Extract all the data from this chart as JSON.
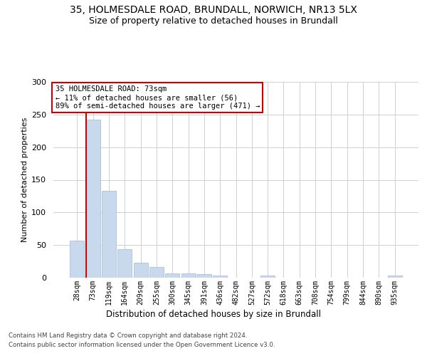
{
  "title_line1": "35, HOLMESDALE ROAD, BRUNDALL, NORWICH, NR13 5LX",
  "title_line2": "Size of property relative to detached houses in Brundall",
  "xlabel": "Distribution of detached houses by size in Brundall",
  "ylabel": "Number of detached properties",
  "annotation_line1": "35 HOLMESDALE ROAD: 73sqm",
  "annotation_line2": "← 11% of detached houses are smaller (56)",
  "annotation_line3": "89% of semi-detached houses are larger (471) →",
  "property_sqm": 73,
  "bar_labels": [
    "28sqm",
    "73sqm",
    "119sqm",
    "164sqm",
    "209sqm",
    "255sqm",
    "300sqm",
    "345sqm",
    "391sqm",
    "436sqm",
    "482sqm",
    "527sqm",
    "572sqm",
    "618sqm",
    "663sqm",
    "708sqm",
    "754sqm",
    "799sqm",
    "844sqm",
    "890sqm",
    "935sqm"
  ],
  "bar_values": [
    57,
    242,
    133,
    44,
    23,
    16,
    7,
    7,
    5,
    3,
    0,
    0,
    3,
    0,
    0,
    0,
    0,
    0,
    0,
    0,
    3
  ],
  "bar_color": "#c9d9ed",
  "bar_edge_color": "#a0b8d8",
  "highlight_bar_index": 1,
  "highlight_line_color": "#cc0000",
  "annotation_box_color": "#ffffff",
  "annotation_box_edge": "#cc0000",
  "grid_color": "#d0d0d0",
  "background_color": "#ffffff",
  "footer_line1": "Contains HM Land Registry data © Crown copyright and database right 2024.",
  "footer_line2": "Contains public sector information licensed under the Open Government Licence v3.0.",
  "ylim": [
    0,
    300
  ],
  "yticks": [
    0,
    50,
    100,
    150,
    200,
    250,
    300
  ]
}
